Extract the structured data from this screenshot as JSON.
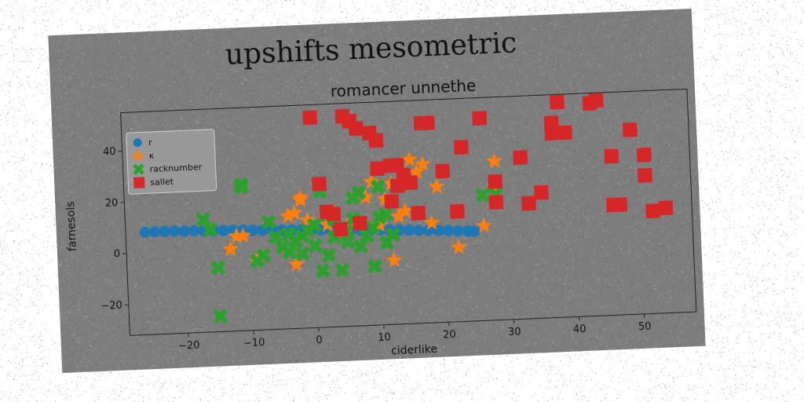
{
  "figure": {
    "suptitle": "upshifts mesometric",
    "background_color": "#7d7d7d"
  },
  "chart_data": {
    "type": "scatter",
    "title": "romancer unnethe",
    "xlabel": "ciderlike",
    "ylabel": "farnesols",
    "xlim": [
      -29,
      58
    ],
    "ylim": [
      -32,
      55
    ],
    "xticks": [
      -20,
      -10,
      0,
      10,
      20,
      30,
      40,
      50
    ],
    "yticks": [
      -20,
      0,
      20,
      40
    ],
    "grid": false,
    "legend_position": "upper-left",
    "series": [
      {
        "name": "r",
        "marker": "circle",
        "color": "#1f77b4",
        "points": [
          [
            -26,
            8
          ],
          [
            -24.5,
            8
          ],
          [
            -23,
            8
          ],
          [
            -21.5,
            8
          ],
          [
            -20,
            7.8
          ],
          [
            -18.5,
            7.8
          ],
          [
            -17,
            7.6
          ],
          [
            -15.5,
            7.6
          ],
          [
            -14,
            7.4
          ],
          [
            -12.5,
            7.3
          ],
          [
            -11,
            7.2
          ],
          [
            -9.5,
            7
          ],
          [
            -8,
            6.9
          ],
          [
            -6.5,
            6.8
          ],
          [
            -5,
            6.6
          ],
          [
            -3.5,
            6.5
          ],
          [
            -2,
            6.4
          ],
          [
            -0.5,
            6.2
          ],
          [
            1,
            6
          ],
          [
            2.5,
            5.9
          ],
          [
            4,
            5.7
          ],
          [
            5.5,
            5.6
          ],
          [
            7,
            5.4
          ],
          [
            8.5,
            5.2
          ],
          [
            10,
            5
          ],
          [
            11.5,
            4.9
          ],
          [
            13,
            4.7
          ],
          [
            14.5,
            4.5
          ],
          [
            16,
            4.3
          ],
          [
            17.5,
            4.1
          ],
          [
            19,
            3.9
          ],
          [
            20.5,
            3.7
          ],
          [
            22,
            3.4
          ],
          [
            23.5,
            3.2
          ],
          [
            24.5,
            3
          ]
        ]
      },
      {
        "name": "κ",
        "marker": "star",
        "color": "#ff7f0e",
        "points": [
          [
            -12,
            5
          ],
          [
            -11,
            5
          ],
          [
            -13,
            0
          ],
          [
            -9,
            -5
          ],
          [
            -3,
            -7
          ],
          [
            -2,
            18
          ],
          [
            -3,
            13
          ],
          [
            -4,
            12
          ],
          [
            -1,
            10
          ],
          [
            2,
            8
          ],
          [
            5,
            7
          ],
          [
            8,
            18
          ],
          [
            9,
            24
          ],
          [
            10,
            7
          ],
          [
            11,
            17
          ],
          [
            12,
            -7
          ],
          [
            12,
            23
          ],
          [
            13,
            10
          ],
          [
            15,
            32
          ],
          [
            16,
            27
          ],
          [
            17,
            30
          ],
          [
            19,
            21
          ],
          [
            22,
            -3
          ],
          [
            26,
            5
          ],
          [
            28,
            20
          ],
          [
            28,
            30
          ],
          [
            3,
            13
          ],
          [
            -2,
            19
          ],
          [
            14,
            12
          ],
          [
            18,
            7
          ]
        ]
      },
      {
        "name": "racknumber",
        "marker": "x",
        "color": "#2ca02c",
        "points": [
          [
            -15,
            -26
          ],
          [
            -15,
            -7
          ],
          [
            -17,
            12
          ],
          [
            -16,
            8
          ],
          [
            -11,
            24
          ],
          [
            -11,
            25
          ],
          [
            -9,
            -5
          ],
          [
            -8,
            -3
          ],
          [
            -7,
            10
          ],
          [
            -6,
            4
          ],
          [
            -5,
            0
          ],
          [
            -4,
            -2
          ],
          [
            -3,
            2
          ],
          [
            -2,
            4
          ],
          [
            -1,
            6
          ],
          [
            0,
            0
          ],
          [
            1,
            21
          ],
          [
            1,
            -10
          ],
          [
            2,
            -4
          ],
          [
            3,
            10
          ],
          [
            3,
            3
          ],
          [
            4,
            -10
          ],
          [
            5,
            1
          ],
          [
            6,
            18
          ],
          [
            7,
            20
          ],
          [
            8,
            3
          ],
          [
            9,
            -9
          ],
          [
            10,
            22
          ],
          [
            10,
            10
          ],
          [
            11,
            11
          ],
          [
            11,
            0
          ],
          [
            12,
            3
          ],
          [
            5,
            5
          ],
          [
            -2,
            -3
          ],
          [
            0,
            8
          ],
          [
            2,
            12
          ],
          [
            7,
            -1
          ],
          [
            -4,
            5
          ],
          [
            9,
            6
          ],
          [
            6,
            10
          ],
          [
            28,
            17
          ],
          [
            26,
            17
          ]
        ]
      },
      {
        "name": "sallet",
        "marker": "square",
        "color": "#d62728",
        "points": [
          [
            0,
            50
          ],
          [
            5,
            50
          ],
          [
            6,
            48
          ],
          [
            7,
            45
          ],
          [
            9,
            43
          ],
          [
            10,
            40
          ],
          [
            1,
            24
          ],
          [
            2,
            13
          ],
          [
            3,
            12
          ],
          [
            4,
            6
          ],
          [
            7,
            8
          ],
          [
            10,
            29
          ],
          [
            12,
            30
          ],
          [
            13,
            30
          ],
          [
            14,
            26
          ],
          [
            15,
            23
          ],
          [
            16,
            11
          ],
          [
            17,
            46
          ],
          [
            18,
            46
          ],
          [
            20,
            27
          ],
          [
            22,
            11
          ],
          [
            23,
            36
          ],
          [
            26,
            47
          ],
          [
            28,
            22
          ],
          [
            28,
            14
          ],
          [
            32,
            31
          ],
          [
            33,
            13
          ],
          [
            35,
            17
          ],
          [
            37,
            44
          ],
          [
            37,
            40
          ],
          [
            38,
            52
          ],
          [
            39,
            40
          ],
          [
            43,
            51
          ],
          [
            44,
            52
          ],
          [
            46,
            30
          ],
          [
            46,
            11
          ],
          [
            47,
            11
          ],
          [
            49,
            40
          ],
          [
            51,
            30
          ],
          [
            51,
            22
          ],
          [
            52,
            8
          ],
          [
            54,
            9
          ],
          [
            12,
            16
          ],
          [
            13,
            22
          ]
        ]
      }
    ]
  }
}
